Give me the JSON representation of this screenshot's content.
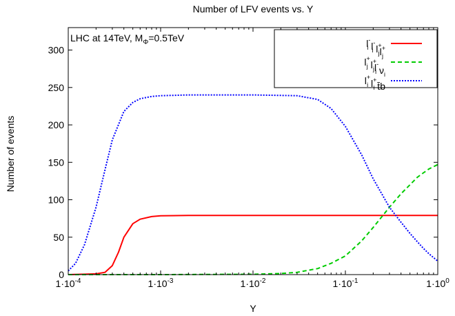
{
  "chart_data": {
    "type": "line",
    "title": "Number of LFV events vs. Y",
    "xlabel": "Y",
    "ylabel": "Number of events",
    "xscale": "log",
    "xlim": [
      0.0001,
      1
    ],
    "ylim": [
      0,
      330
    ],
    "grid": false,
    "legend_position": "top-right",
    "annotation": {
      "prefix": "LHC at 14TeV, M",
      "sub": "Φ",
      "suffix": "=0.5TeV"
    },
    "x_ticks": [
      {
        "value": 0.0001,
        "mant": "1·10",
        "exp": "-4"
      },
      {
        "value": 0.001,
        "mant": "1·10",
        "exp": "-3"
      },
      {
        "value": 0.01,
        "mant": "1·10",
        "exp": "-2"
      },
      {
        "value": 0.1,
        "mant": "1·10",
        "exp": "-1"
      },
      {
        "value": 1,
        "mant": "1·10",
        "exp": "0"
      }
    ],
    "y_ticks": [
      {
        "value": 0,
        "label": "0"
      },
      {
        "value": 50,
        "label": "50"
      },
      {
        "value": 100,
        "label": "100"
      },
      {
        "value": 150,
        "label": "150"
      },
      {
        "value": 200,
        "label": "200"
      },
      {
        "value": 250,
        "label": "250"
      },
      {
        "value": 300,
        "label": "300"
      }
    ],
    "series": [
      {
        "id": "s1",
        "color": "#ff0000",
        "dash": "solid",
        "x": [
          0.0001,
          0.0002,
          0.00025,
          0.0003,
          0.00035,
          0.0004,
          0.0005,
          0.0006,
          0.0008,
          0.001,
          0.002,
          0.01,
          0.1,
          1
        ],
        "y": [
          0,
          1,
          3,
          12,
          30,
          50,
          68,
          74,
          77.5,
          78.5,
          79,
          79,
          79,
          79
        ]
      },
      {
        "id": "s2",
        "color": "#00cc00",
        "dash": "dashed",
        "x": [
          0.0001,
          0.001,
          0.01,
          0.02,
          0.03,
          0.05,
          0.07,
          0.1,
          0.15,
          0.2,
          0.3,
          0.4,
          0.5,
          0.6,
          0.7,
          0.8,
          1
        ],
        "y": [
          0,
          0,
          0.5,
          1.5,
          3,
          8,
          15,
          25,
          45,
          63,
          90,
          108,
          120,
          130,
          136,
          141,
          147
        ]
      },
      {
        "id": "s3",
        "color": "#0000ff",
        "dash": "dotted",
        "x": [
          0.0001,
          0.00012,
          0.00015,
          0.0002,
          0.00025,
          0.0003,
          0.0004,
          0.0005,
          0.0006,
          0.0008,
          0.001,
          0.002,
          0.01,
          0.03,
          0.05,
          0.07,
          0.1,
          0.15,
          0.2,
          0.3,
          0.4,
          0.5,
          0.6,
          0.7,
          0.8,
          1
        ],
        "y": [
          5,
          15,
          40,
          90,
          140,
          180,
          218,
          230,
          235,
          238,
          239,
          240,
          240,
          239,
          234,
          222,
          198,
          160,
          128,
          90,
          70,
          55,
          44,
          35,
          28,
          18
        ]
      }
    ],
    "legend": [
      {
        "series": "s1",
        "parts": [
          {
            "t": "l",
            "sub": "i",
            "sup": "-"
          },
          {
            "t": " l",
            "sub": "i",
            "sup": "-"
          },
          {
            "t": " l",
            "sub": "j",
            "sup": "+"
          },
          {
            "t": "l",
            "sub": "j",
            "sup": "+"
          }
        ]
      },
      {
        "series": "s2",
        "parts": [
          {
            "t": "l",
            "sub": "j",
            "sup": "+"
          },
          {
            "t": " l",
            "sub": "j",
            "sup": "+"
          },
          {
            "t": "l",
            "sub": "i",
            "sup": "-"
          },
          {
            "t": " ν",
            "sub": "i",
            "sup": ""
          }
        ]
      },
      {
        "series": "s3",
        "parts": [
          {
            "t": "l",
            "sub": "i",
            "sup": "+"
          },
          {
            "t": " l",
            "sub": "i",
            "sup": "+"
          },
          {
            "t": " t̄b",
            "sub": "",
            "sup": ""
          }
        ]
      }
    ]
  }
}
